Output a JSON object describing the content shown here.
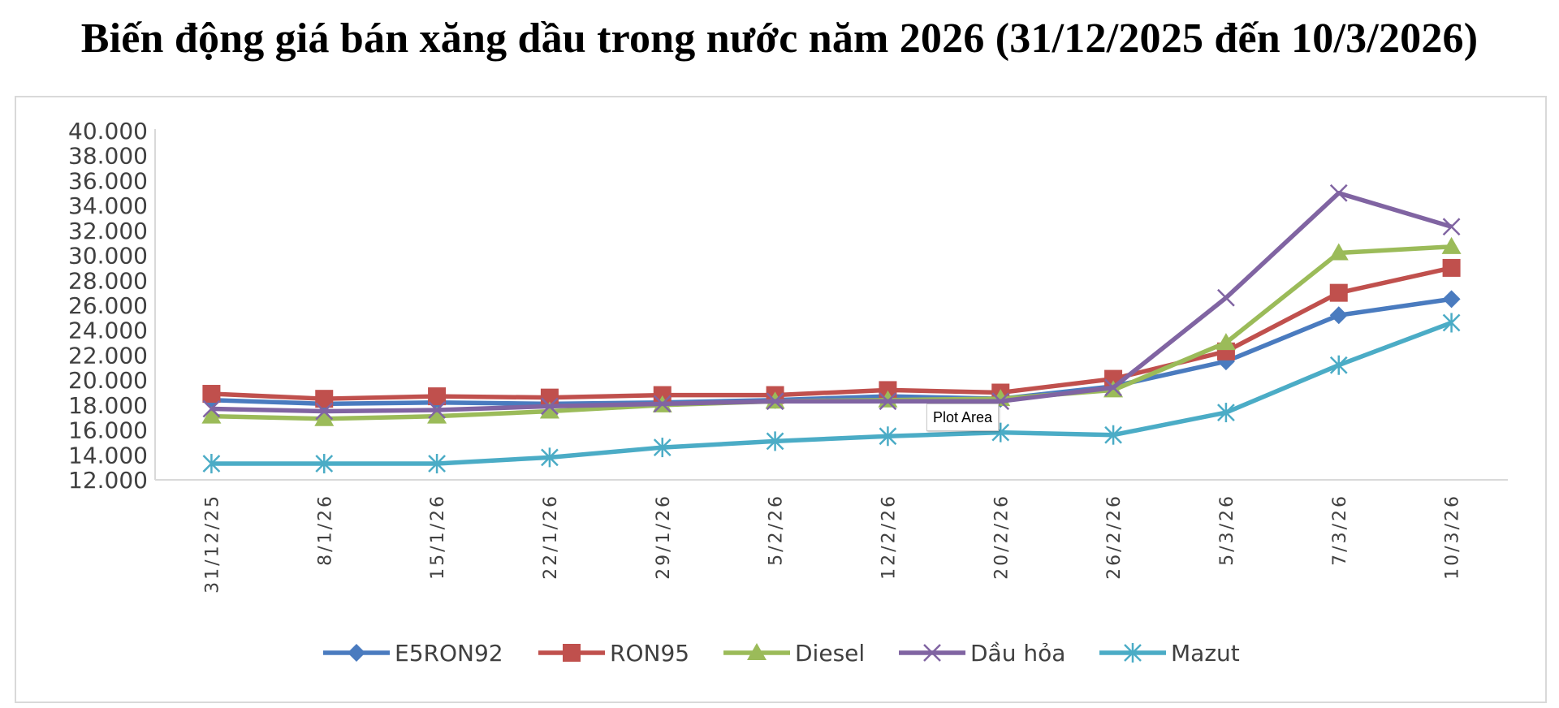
{
  "page": {
    "title": "Biến động giá bán xăng dầu trong nước năm 2026 (31/12/2025 đến 10/3/2026)",
    "tooltip": "Plot Area"
  },
  "chart_data": {
    "type": "line",
    "title": "Biến động giá bán xăng dầu trong nước năm 2026 (31/12/2025 đến 10/3/2026)",
    "categories": [
      "31/12/25",
      "8/1/26",
      "15/1/26",
      "22/1/26",
      "29/1/26",
      "5/2/26",
      "12/2/26",
      "20/2/26",
      "26/2/26",
      "5/3/26",
      "7/3/26",
      "10/3/26"
    ],
    "ylim": [
      12000,
      40000
    ],
    "yticks": [
      12000,
      14000,
      16000,
      18000,
      20000,
      22000,
      24000,
      26000,
      28000,
      30000,
      32000,
      34000,
      36000,
      38000,
      40000
    ],
    "ytick_labels": [
      "12.000",
      "14.000",
      "16.000",
      "18.000",
      "20.000",
      "22.000",
      "24.000",
      "26.000",
      "28.000",
      "30.000",
      "32.000",
      "34.000",
      "36.000",
      "38.000",
      "40.000"
    ],
    "grid": false,
    "legend": "bottom",
    "series": [
      {
        "name": "E5RON92",
        "color": "#4a7bbf",
        "marker": "diamond",
        "values": [
          18400,
          18100,
          18200,
          18100,
          18200,
          18400,
          18700,
          18500,
          19500,
          21500,
          25200,
          26500
        ]
      },
      {
        "name": "RON95",
        "color": "#c0504d",
        "marker": "square",
        "values": [
          18900,
          18500,
          18700,
          18600,
          18800,
          18800,
          19200,
          19000,
          20100,
          22300,
          27000,
          29000
        ]
      },
      {
        "name": "Diesel",
        "color": "#9bbb59",
        "marker": "triangle",
        "values": [
          17100,
          16900,
          17100,
          17500,
          18000,
          18300,
          18400,
          18500,
          19200,
          23000,
          30200,
          30700
        ]
      },
      {
        "name": "Dầu hỏa",
        "color": "#8064a2",
        "marker": "x",
        "values": [
          17700,
          17500,
          17600,
          17900,
          18100,
          18300,
          18300,
          18300,
          19400,
          26600,
          35000,
          32300
        ]
      },
      {
        "name": "Mazut",
        "color": "#4bacc6",
        "marker": "asterisk",
        "values": [
          13300,
          13300,
          13300,
          13800,
          14600,
          15100,
          15500,
          15800,
          15600,
          17400,
          21200,
          24600
        ]
      }
    ]
  }
}
